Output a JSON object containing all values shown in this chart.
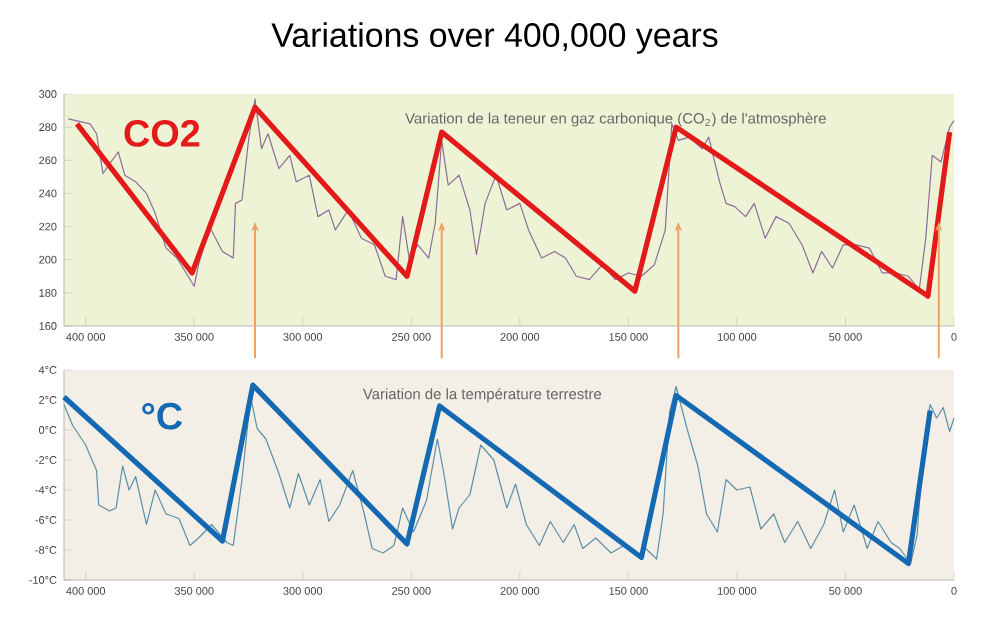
{
  "chart_data": [
    {
      "type": "line",
      "title": "Variations over 400,000 years",
      "annotations": [
        "Variation de la teneur en gaz carbonique (CO$_{2}$) de l'atmosphère"
      ],
      "xlim": [
        410000,
        0
      ],
      "ylim": [
        160,
        300
      ],
      "xticks": [
        {
          "value": 400000,
          "label": "400 000"
        },
        {
          "value": 350000,
          "label": "350 000"
        },
        {
          "value": 300000,
          "label": "300 000"
        },
        {
          "value": 250000,
          "label": "250 000"
        },
        {
          "value": 200000,
          "label": "200 000"
        },
        {
          "value": 150000,
          "label": "150 000"
        },
        {
          "value": 100000,
          "label": "100 000"
        },
        {
          "value": 50000,
          "label": "50 000"
        },
        0
      ],
      "yticks": [
        160,
        180,
        200,
        220,
        240,
        260,
        280,
        300
      ],
      "ref_lines": [
        {
          "axis": "x",
          "value": 322000,
          "color": "#f0a060"
        },
        {
          "axis": "x",
          "value": 236000,
          "color": "#f0a060"
        },
        {
          "axis": "x",
          "value": 127000,
          "color": "#f0a060"
        },
        {
          "axis": "x",
          "value": 7000,
          "color": "#f0a060"
        }
      ],
      "series": [
        {
          "color": "#8c6d99",
          "x": [
            408000,
            398000,
            395000,
            392000,
            389000,
            385000,
            382000,
            377000,
            372000,
            368000,
            363000,
            358000,
            354000,
            350000,
            348000,
            343000,
            337000,
            332000,
            331000,
            328000,
            325000,
            322000,
            319000,
            316000,
            311000,
            306000,
            303000,
            297000,
            293000,
            288000,
            285000,
            279000,
            273000,
            267000,
            262000,
            257000,
            254000,
            251000,
            247000,
            242000,
            239000,
            236000,
            233000,
            228000,
            223000,
            220000,
            216000,
            211000,
            206000,
            200000,
            196000,
            190000,
            184000,
            179000,
            174000,
            168000,
            162000,
            156000,
            150000,
            144000,
            138000,
            133000,
            130000,
            127000,
            122000,
            116000,
            113000,
            108000,
            105000,
            101000,
            96000,
            92000,
            87000,
            82000,
            76000,
            70000,
            65000,
            61000,
            56000,
            51000,
            45000,
            39000,
            33000,
            27000,
            21000,
            16000,
            13000,
            10000,
            6000,
            2000,
            0
          ],
          "values": [
            285,
            282,
            276,
            252,
            258,
            265,
            251,
            247,
            240,
            228,
            207,
            201,
            null,
            184,
            197,
            220,
            205,
            201,
            234,
            236,
            272,
            297,
            267,
            276,
            255,
            263,
            247,
            251,
            226,
            230,
            218,
            230,
            213,
            209,
            190,
            188,
            226,
            201,
            209,
            201,
            222,
            272,
            245,
            251,
            230,
            203,
            234,
            251,
            230,
            234,
            218,
            201,
            205,
            201,
            190,
            188,
            197,
            188,
            192,
            190,
            197,
            218,
            282,
            272,
            274,
            267,
            274,
            247,
            234,
            232,
            226,
            234,
            213,
            226,
            222,
            209,
            192,
            205,
            195,
            209,
            209,
            207,
            192,
            192,
            190,
            182,
            213,
            263,
            259,
            280,
            284
          ]
        },
        {
          "name": "CO2",
          "color": "#e41a1a",
          "x": [
            404000,
            351000,
            322000,
            252000,
            236000,
            147000,
            128000,
            12000,
            2000
          ],
          "values": [
            282,
            192,
            292,
            190,
            277,
            181,
            280,
            178,
            277
          ]
        }
      ]
    },
    {
      "type": "line",
      "annotations": [
        "Variation de la température terrestre"
      ],
      "xlim": [
        410000,
        0
      ],
      "ylim": [
        -10,
        4
      ],
      "xticks": [
        {
          "value": 400000,
          "label": "400 000"
        },
        {
          "value": 350000,
          "label": "350 000"
        },
        {
          "value": 300000,
          "label": "300 000"
        },
        {
          "value": 250000,
          "label": "250 000"
        },
        {
          "value": 200000,
          "label": "200 000"
        },
        {
          "value": 150000,
          "label": "150 000"
        },
        {
          "value": 100000,
          "label": "100 000"
        },
        {
          "value": 50000,
          "label": "50 000"
        },
        0
      ],
      "yticks": [
        {
          "value": -10,
          "label": "-10°C"
        },
        {
          "value": -8,
          "label": "-8°C"
        },
        {
          "value": -6,
          "label": "-6°C"
        },
        {
          "value": -4,
          "label": "-4°C"
        },
        {
          "value": -2,
          "label": "-2°C"
        },
        {
          "value": 0,
          "label": "0°C"
        },
        {
          "value": 2,
          "label": "2°C"
        },
        {
          "value": 4,
          "label": "4°C"
        }
      ],
      "series": [
        {
          "color": "#5b8fa8",
          "x": [
            410000,
            406000,
            400000,
            395000,
            394000,
            389000,
            386000,
            383000,
            380000,
            377000,
            372000,
            368000,
            363000,
            357000,
            352000,
            348000,
            342000,
            335000,
            332000,
            328000,
            324000,
            321000,
            317000,
            311000,
            306000,
            302000,
            297000,
            292000,
            288000,
            283000,
            277000,
            272000,
            268000,
            263000,
            258000,
            254000,
            249000,
            243000,
            238000,
            235000,
            231000,
            228000,
            223000,
            218000,
            212000,
            206000,
            202000,
            197000,
            191000,
            186000,
            180000,
            175000,
            171000,
            165000,
            158000,
            152000,
            146000,
            142000,
            137000,
            134000,
            131000,
            128000,
            123000,
            118000,
            114000,
            109000,
            105000,
            100000,
            94000,
            89000,
            83000,
            78000,
            72000,
            66000,
            60000,
            55000,
            51000,
            46000,
            40000,
            35000,
            29000,
            25000,
            20000,
            17000,
            14000,
            11000,
            8000,
            5000,
            2000,
            0
          ],
          "values": [
            1.7,
            0.3,
            -1.0,
            -2.7,
            -5.0,
            -5.4,
            -5.2,
            -2.4,
            -4.0,
            -3.1,
            -6.3,
            -4.0,
            -5.6,
            -5.9,
            -7.7,
            -7.2,
            -6.3,
            -7.5,
            -7.7,
            -3.3,
            2.2,
            0.1,
            -0.6,
            -2.9,
            -5.2,
            -2.9,
            -5.0,
            -3.3,
            -6.1,
            -5.0,
            -2.7,
            -5.4,
            -7.9,
            -8.2,
            -7.7,
            -5.2,
            -6.8,
            -4.7,
            -0.6,
            -2.9,
            -6.6,
            -5.2,
            -4.3,
            -1.0,
            -2.0,
            -5.2,
            -3.6,
            -6.3,
            -7.7,
            -6.1,
            -7.5,
            -6.3,
            -7.9,
            -7.2,
            -8.2,
            -7.7,
            -8.4,
            -7.9,
            -8.6,
            -5.6,
            1.2,
            2.9,
            0.1,
            -2.4,
            -5.6,
            -6.8,
            -3.3,
            -4.0,
            -3.8,
            -6.6,
            -5.6,
            -7.5,
            -6.1,
            -7.9,
            -6.3,
            -4.0,
            -6.8,
            -5.0,
            -7.9,
            -6.1,
            -7.5,
            -7.9,
            -8.9,
            -7.0,
            -1.0,
            1.7,
            0.8,
            1.5,
            -0.1,
            0.8
          ]
        },
        {
          "name": "°C",
          "color": "#1469b3",
          "x": [
            410000,
            337000,
            323000,
            252000,
            237000,
            144000,
            128000,
            21000,
            11000
          ],
          "values": [
            2.2,
            -7.4,
            3.0,
            -7.6,
            1.6,
            -8.5,
            2.3,
            -8.9,
            1.3
          ]
        }
      ]
    }
  ]
}
